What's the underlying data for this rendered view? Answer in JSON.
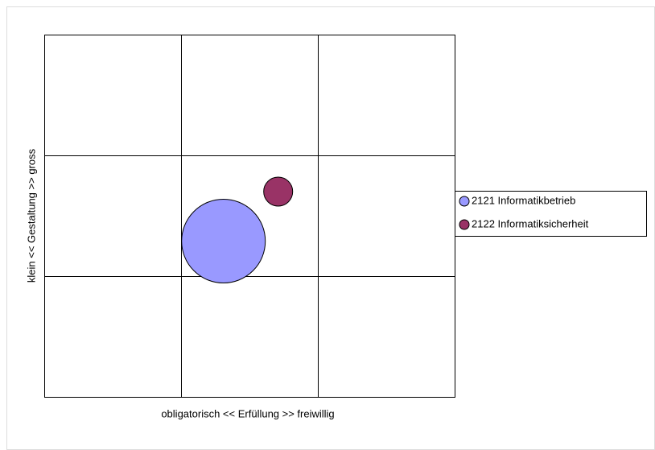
{
  "chart_data": {
    "type": "bubble",
    "xlabel": "obligatorisch << Erfüllung >> freiwillig",
    "ylabel": "klein << Gestaltung >> gross",
    "xlim": [
      0,
      3
    ],
    "ylim": [
      0,
      3
    ],
    "series": [
      {
        "name": "2121 Informatikbetrieb",
        "color": "#9999ff",
        "x": [
          1.31
        ],
        "values": [
          1.29
        ],
        "sizes": [
          100
        ]
      },
      {
        "name": "2122 Informatiksicherheit",
        "color": "#993366",
        "x": [
          1.71
        ],
        "values": [
          1.7
        ],
        "sizes": [
          12
        ]
      }
    ],
    "legend": "right"
  }
}
